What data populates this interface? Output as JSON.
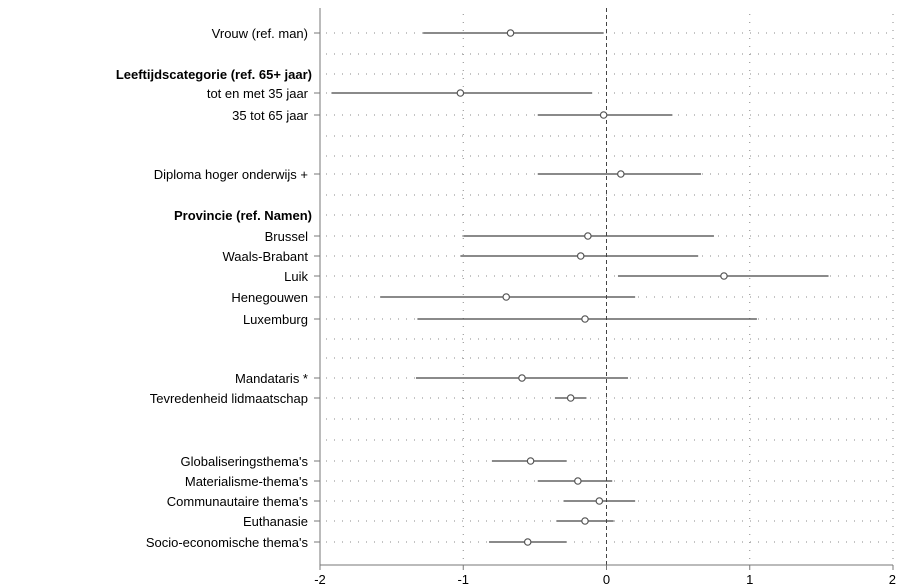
{
  "chart_data": {
    "type": "scatter",
    "xlim": [
      -2,
      2
    ],
    "xticks": [
      -2,
      -1,
      0,
      1,
      2
    ],
    "grid": true,
    "reference_line": 0,
    "rows": [
      {
        "label": "Vrouw (ref. man)",
        "header": false,
        "estimate": -0.67,
        "lower": -1.28,
        "upper": -0.02
      },
      {
        "label": "Leeftijdscategorie (ref. 65+ jaar)",
        "header": true
      },
      {
        "label": "tot en met 35 jaar",
        "header": false,
        "estimate": -1.02,
        "lower": -1.92,
        "upper": -0.1
      },
      {
        "label": "35 tot 65 jaar",
        "header": false,
        "estimate": -0.02,
        "lower": -0.48,
        "upper": 0.46
      },
      {
        "label": "Diploma hoger onderwijs +",
        "header": false,
        "estimate": 0.1,
        "lower": -0.48,
        "upper": 0.66
      },
      {
        "label": "Provincie (ref. Namen)",
        "header": true
      },
      {
        "label": "Brussel",
        "header": false,
        "estimate": -0.13,
        "lower": -1.0,
        "upper": 0.75
      },
      {
        "label": "Waals-Brabant",
        "header": false,
        "estimate": -0.18,
        "lower": -1.02,
        "upper": 0.64
      },
      {
        "label": "Luik",
        "header": false,
        "estimate": 0.82,
        "lower": 0.08,
        "upper": 1.55
      },
      {
        "label": "Henegouwen",
        "header": false,
        "estimate": -0.7,
        "lower": -1.58,
        "upper": 0.2
      },
      {
        "label": "Luxemburg",
        "header": false,
        "estimate": -0.15,
        "lower": -1.32,
        "upper": 1.05
      },
      {
        "label": "Mandataris *",
        "header": false,
        "estimate": -0.59,
        "lower": -1.33,
        "upper": 0.15
      },
      {
        "label": "Tevredenheid lidmaatschap",
        "header": false,
        "estimate": -0.25,
        "lower": -0.36,
        "upper": -0.14
      },
      {
        "label": "Globaliseringsthema's",
        "header": false,
        "estimate": -0.53,
        "lower": -0.8,
        "upper": -0.28
      },
      {
        "label": "Materialisme-thema's",
        "header": false,
        "estimate": -0.2,
        "lower": -0.48,
        "upper": 0.04
      },
      {
        "label": "Communautaire thema's",
        "header": false,
        "estimate": -0.05,
        "lower": -0.3,
        "upper": 0.2
      },
      {
        "label": "Euthanasie",
        "header": false,
        "estimate": -0.15,
        "lower": -0.35,
        "upper": 0.05
      },
      {
        "label": "Socio-economische thema's",
        "header": false,
        "estimate": -0.55,
        "lower": -0.82,
        "upper": -0.28
      }
    ]
  },
  "colors": {
    "marker": "#555555",
    "line": "#444444",
    "grid": "#888888",
    "axis": "#777777"
  }
}
